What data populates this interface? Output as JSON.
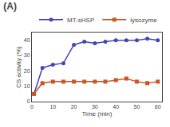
{
  "chart_data": {
    "type": "line",
    "title": "(A)",
    "xlabel": "Time (min)",
    "ylabel": "CS activity (%)",
    "x": [
      1,
      5,
      10,
      15,
      20,
      25,
      30,
      35,
      40,
      45,
      50,
      55,
      60
    ],
    "series": [
      {
        "name": "MT-sHSP",
        "color": "#4444bb",
        "marker": "circle",
        "values": [
          5,
          22,
          24,
          25,
          37,
          39,
          38,
          39,
          40,
          40,
          40,
          41,
          40
        ]
      },
      {
        "name": "lysozyme",
        "color": "#cc5522",
        "marker": "square",
        "values": [
          5,
          12,
          13,
          13,
          13,
          13,
          13,
          13,
          14,
          15,
          13,
          12,
          13
        ]
      }
    ],
    "xlim": [
      0,
      62
    ],
    "xticks": [
      0,
      10,
      20,
      30,
      40,
      50,
      60
    ],
    "ylim": [
      0,
      45
    ],
    "yticks": [
      0,
      10,
      20,
      30,
      40
    ],
    "grid": false,
    "legend": "upper right"
  }
}
